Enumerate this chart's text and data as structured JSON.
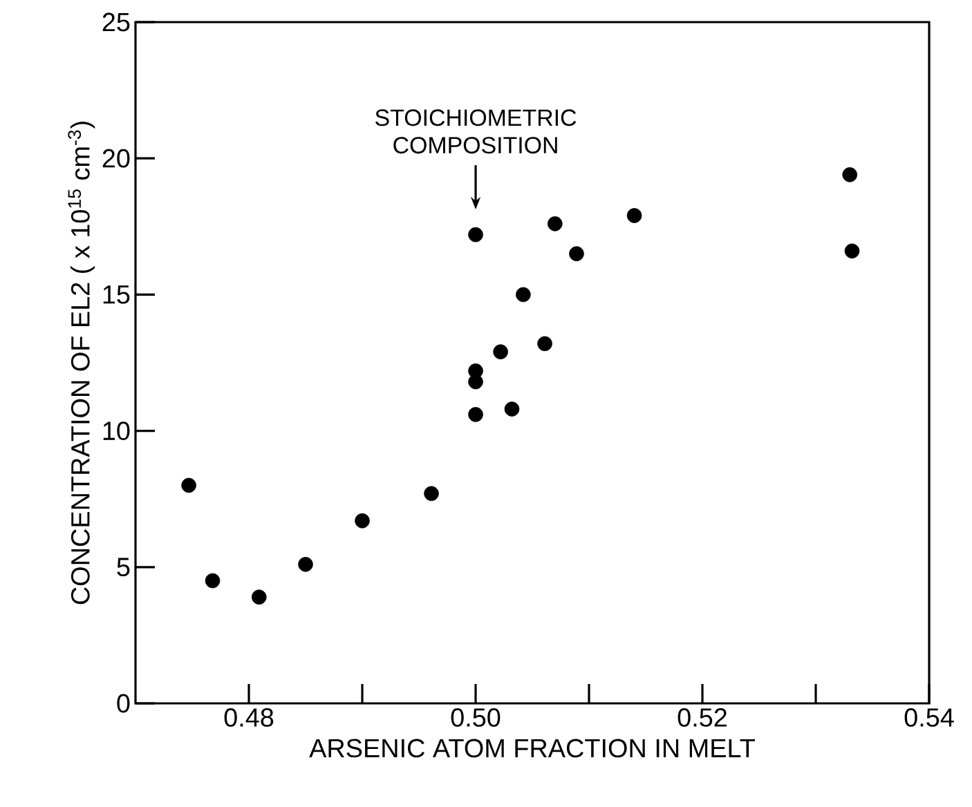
{
  "chart_data": {
    "type": "scatter",
    "xlabel": "ARSENIC ATOM FRACTION IN MELT",
    "ylabel": "CONCENTRATION OF EL2 ( x 10$^{15}$ cm$^{-3}$)",
    "x": [
      0.4747,
      0.4768,
      0.4809,
      0.485,
      0.49,
      0.4961,
      0.5,
      0.5,
      0.5,
      0.5,
      0.5022,
      0.5032,
      0.5042,
      0.5061,
      0.507,
      0.5089,
      0.514,
      0.533,
      0.5332
    ],
    "series": [
      {
        "color": "#000000",
        "values": [
          8.0,
          4.5,
          3.9,
          5.1,
          6.7,
          7.7,
          17.2,
          12.2,
          11.8,
          10.6,
          12.9,
          10.8,
          15.0,
          13.2,
          17.6,
          16.5,
          17.9,
          19.4,
          16.6
        ]
      }
    ],
    "xlim": [
      0.47,
      0.54
    ],
    "ylim": [
      0,
      25
    ],
    "xticks": [
      {
        "value": 0.48,
        "label": "0.48"
      },
      {
        "value": 0.49,
        "label": null
      },
      {
        "value": 0.5,
        "label": "0.50"
      },
      {
        "value": 0.51,
        "label": null
      },
      {
        "value": 0.52,
        "label": "0.52"
      },
      {
        "value": 0.53,
        "label": null
      },
      {
        "value": 0.54,
        "label": "0.54"
      }
    ],
    "yticks": [
      0,
      5,
      10,
      15,
      20,
      25
    ],
    "annotations": [
      "STOICHIOMETRIC COMPOSITION"
    ],
    "marker": "circle",
    "grid": false
  }
}
